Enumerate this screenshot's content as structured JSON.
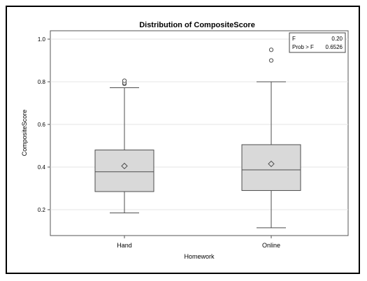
{
  "chart_data": {
    "type": "box",
    "title": "Distribution of CompositeScore",
    "xlabel": "Homework",
    "ylabel": "CompositeScore",
    "ylim": [
      0.1,
      1.05
    ],
    "y_ticks": [
      0.2,
      0.4,
      0.6,
      0.8,
      1.0
    ],
    "y_tick_labels": [
      "0.2",
      "0.4",
      "0.6",
      "0.8",
      "1.0"
    ],
    "grid": true,
    "categories": [
      "Hand",
      "Online"
    ],
    "boxes": [
      {
        "category": "Hand",
        "whisker_low": 0.185,
        "q1": 0.285,
        "median": 0.378,
        "q3": 0.48,
        "whisker_high": 0.772,
        "mean": 0.405,
        "outliers": [
          0.79,
          0.795,
          0.805
        ]
      },
      {
        "category": "Online",
        "whisker_low": 0.115,
        "q1": 0.29,
        "median": 0.387,
        "q3": 0.505,
        "whisker_high": 0.8,
        "mean": 0.415,
        "outliers": [
          0.9,
          0.95
        ]
      }
    ],
    "stats_inset": {
      "rows": [
        {
          "label": "F",
          "value": "0.20"
        },
        {
          "label": "Prob > F",
          "value": "0.6526"
        }
      ],
      "placement": "top-right"
    },
    "colors": {
      "box_fill": "#d9d9d9",
      "stroke": "#4d4d4d",
      "grid": "#e6e6e6"
    }
  }
}
